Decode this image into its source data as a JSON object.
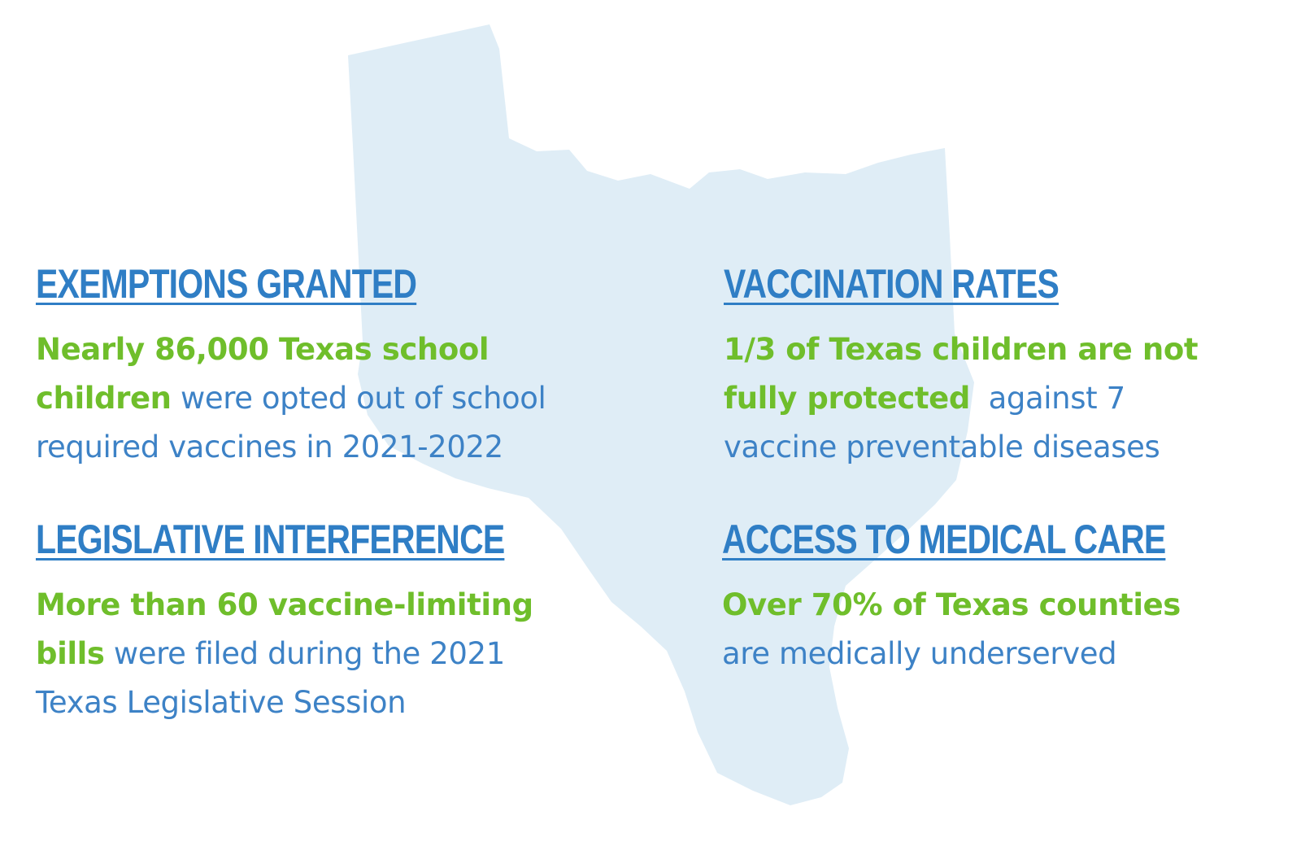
{
  "colors": {
    "heading": "#2f7ec5",
    "body": "#3d82c6",
    "highlight": "#6fbe2b",
    "map_fill": "#dfedf6"
  },
  "sections": [
    {
      "heading": "EXEMPTIONS GRANTED",
      "lines": [
        [
          {
            "text": "Nearly 86,000 Texas school",
            "hl": true
          }
        ],
        [
          {
            "text": "children",
            "hl": true
          },
          {
            "text": " were opted out of school",
            "hl": false
          }
        ],
        [
          {
            "text": "required vaccines in 2021-2022",
            "hl": false
          }
        ]
      ]
    },
    {
      "heading": "VACCINATION RATES",
      "lines": [
        [
          {
            "text": "1/3 of Texas children are not",
            "hl": true
          }
        ],
        [
          {
            "text": "fully protected",
            "hl": true
          },
          {
            "text": "  against 7",
            "hl": false
          }
        ],
        [
          {
            "text": "vaccine preventable diseases",
            "hl": false
          }
        ]
      ]
    },
    {
      "heading": "LEGISLATIVE INTERFERENCE",
      "lines": [
        [
          {
            "text": "More than 60 vaccine-limiting",
            "hl": true
          }
        ],
        [
          {
            "text": "bills",
            "hl": true
          },
          {
            "text": " were filed during the 2021",
            "hl": false
          }
        ],
        [
          {
            "text": "Texas Legislative Session",
            "hl": false
          }
        ]
      ]
    },
    {
      "heading": "ACCESS TO MEDICAL CARE",
      "lines": [
        [
          {
            "text": "Over 70% of Texas counties",
            "hl": true
          }
        ],
        [
          {
            "text": "are medically underserved",
            "hl": false
          }
        ]
      ]
    }
  ]
}
